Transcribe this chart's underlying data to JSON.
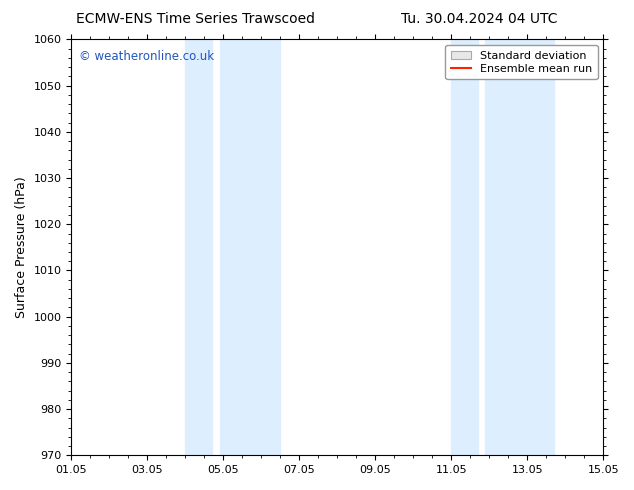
{
  "title_left": "ECMW-ENS Time Series Trawscoed",
  "title_right": "Tu. 30.04.2024 04 UTC",
  "ylabel": "Surface Pressure (hPa)",
  "ylim": [
    970,
    1060
  ],
  "yticks": [
    970,
    980,
    990,
    1000,
    1010,
    1020,
    1030,
    1040,
    1050,
    1060
  ],
  "xtick_labels": [
    "01.05",
    "03.05",
    "05.05",
    "07.05",
    "09.05",
    "11.05",
    "13.05",
    "15.05"
  ],
  "xtick_positions": [
    0,
    2,
    4,
    6,
    8,
    10,
    12,
    14
  ],
  "shaded_bands": [
    {
      "x_start": 3.0,
      "x_end": 3.7
    },
    {
      "x_start": 3.9,
      "x_end": 5.5
    },
    {
      "x_start": 10.0,
      "x_end": 10.7
    },
    {
      "x_start": 10.9,
      "x_end": 12.7
    }
  ],
  "shade_color": "#ddeeff",
  "watermark_text": "© weatheronline.co.uk",
  "watermark_color": "#2255bb",
  "legend_std_color": "#e8e8e8",
  "legend_mean_color": "#ff2200",
  "background_color": "#ffffff",
  "title_fontsize": 10,
  "axis_label_fontsize": 9,
  "tick_fontsize": 8
}
